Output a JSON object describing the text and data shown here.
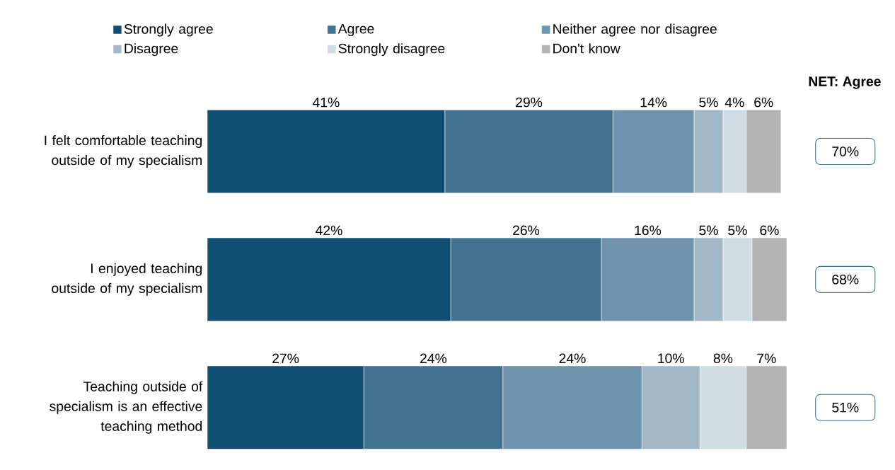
{
  "chart_data": {
    "type": "bar",
    "orientation": "horizontal",
    "stacked": true,
    "legend": "top",
    "categories": [
      "I felt comfortable teaching outside of my specialism",
      "I enjoyed teaching outside of my specialism",
      "Teaching outside of specialism is an effective teaching method"
    ],
    "series": [
      {
        "name": "Strongly agree",
        "color": "#114e73",
        "values": [
          41,
          42,
          27
        ],
        "value_labels": [
          "41%",
          "42%",
          "27%"
        ]
      },
      {
        "name": "Agree",
        "color": "#41728f",
        "values": [
          29,
          26,
          24
        ],
        "value_labels": [
          "29%",
          "26%",
          "24%"
        ]
      },
      {
        "name": "Neither agree nor disagree",
        "color": "#7093ad",
        "values": [
          14,
          16,
          24
        ],
        "value_labels": [
          "14%",
          "16%",
          "24%"
        ]
      },
      {
        "name": "Disagree",
        "color": "#a3b8c7",
        "values": [
          5,
          5,
          10
        ],
        "value_labels": [
          "5%",
          "5%",
          "10%"
        ]
      },
      {
        "name": "Strongly disagree",
        "color": "#cfdce4",
        "values": [
          4,
          5,
          8
        ],
        "value_labels": [
          "4%",
          "5%",
          "8%"
        ]
      },
      {
        "name": "Don't know",
        "color": "#b3b3b3",
        "values": [
          6,
          6,
          7
        ],
        "value_labels": [
          "6%",
          "6%",
          "7%"
        ]
      }
    ],
    "annotations": [
      "NET: Agree",
      "70%",
      "68%",
      "51%"
    ]
  }
}
